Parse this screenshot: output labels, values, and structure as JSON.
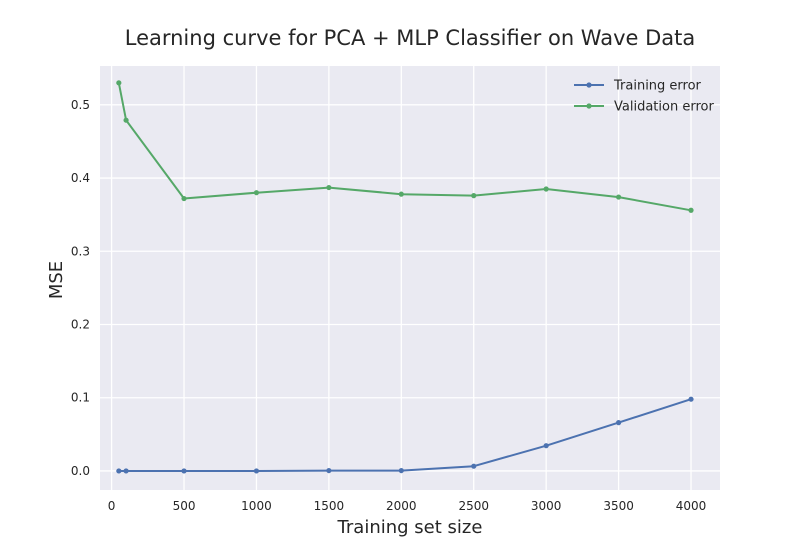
{
  "chart_data": {
    "type": "line",
    "title": "Learning curve for PCA + MLP Classifier on Wave Data",
    "xlabel": "Training set size",
    "ylabel": "MSE",
    "xlim": [
      -80,
      4200
    ],
    "ylim": [
      -0.026,
      0.553
    ],
    "xticks": [
      0,
      500,
      1000,
      1500,
      2000,
      2500,
      3000,
      3500,
      4000
    ],
    "yticks": [
      0.0,
      0.1,
      0.2,
      0.3,
      0.4,
      0.5
    ],
    "xtick_labels": [
      "0",
      "500",
      "1000",
      "1500",
      "2000",
      "2500",
      "3000",
      "3500",
      "4000"
    ],
    "ytick_labels": [
      "0.0",
      "0.1",
      "0.2",
      "0.3",
      "0.4",
      "0.5"
    ],
    "grid": true,
    "legend_position": "top-right",
    "series": [
      {
        "name": "Training error",
        "color": "#4c72b0",
        "x": [
          50,
          100,
          500,
          1000,
          1500,
          2000,
          2500,
          3000,
          3500,
          4000
        ],
        "y": [
          0.0,
          0.0,
          0.0,
          0.0,
          0.0005,
          0.0005,
          0.0065,
          0.0345,
          0.066,
          0.098
        ]
      },
      {
        "name": "Validation error",
        "color": "#55a868",
        "x": [
          50,
          100,
          500,
          1000,
          1500,
          2000,
          2500,
          3000,
          3500,
          4000
        ],
        "y": [
          0.53,
          0.479,
          0.372,
          0.38,
          0.387,
          0.378,
          0.376,
          0.385,
          0.374,
          0.356
        ]
      }
    ]
  }
}
